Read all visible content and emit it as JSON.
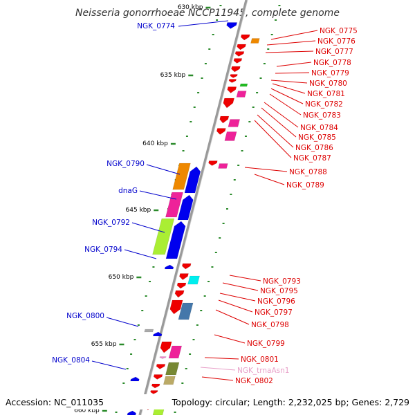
{
  "title": "Neisseria gonorrhoeae NCCP11945, complete genome",
  "footer": {
    "accession": "Accession: NC_011035",
    "summary": "Topology: circular; Length: 2,232,025 bp; Genes: 2,729"
  },
  "scale_labels": [
    "630 kbp",
    "635 kbp",
    "640 kbp",
    "645 kbp",
    "650 kbp",
    "655 kbp",
    "660 kbp"
  ],
  "colors": {
    "left_label": "#0000cc",
    "right_label": "#dd0000",
    "rna_label": "#e8a0c8",
    "backbone": "#9a9a9a",
    "tick": "#2a8a2a",
    "blue": "#0000ee",
    "red": "#ee0000",
    "orange": "#ee8800",
    "magenta": "#ee2299",
    "lime": "#aaee33",
    "cyan": "#00eeee",
    "steel": "#4477aa",
    "olive": "#778833",
    "khaki": "#bbaa66",
    "gray": "#aaaaaa",
    "green": "#22bb22",
    "pink": "#ee88cc"
  },
  "left_labels": [
    {
      "text": "NGK_0774"
    },
    {
      "text": "NGK_0790"
    },
    {
      "text": "dnaG"
    },
    {
      "text": "NGK_0792"
    },
    {
      "text": "NGK_0794"
    },
    {
      "text": "NGK_0800"
    },
    {
      "text": "NGK_0804"
    }
  ],
  "right_labels": [
    {
      "text": "NGK_0775"
    },
    {
      "text": "NGK_0776"
    },
    {
      "text": "NGK_0777"
    },
    {
      "text": "NGK_0778"
    },
    {
      "text": "NGK_0779"
    },
    {
      "text": "NGK_0780"
    },
    {
      "text": "NGK_0781"
    },
    {
      "text": "NGK_0782"
    },
    {
      "text": "NGK_0783"
    },
    {
      "text": "NGK_0784"
    },
    {
      "text": "NGK_0785"
    },
    {
      "text": "NGK_0786"
    },
    {
      "text": "NGK_0787"
    },
    {
      "text": "NGK_0788"
    },
    {
      "text": "NGK_0789"
    },
    {
      "text": "NGK_0793"
    },
    {
      "text": "NGK_0795"
    },
    {
      "text": "NGK_0796"
    },
    {
      "text": "NGK_0797"
    },
    {
      "text": "NGK_0798"
    },
    {
      "text": "NGK_0799"
    },
    {
      "text": "NGK_0801"
    },
    {
      "text": "NGK_trnaAsn1"
    },
    {
      "text": "NGK_0802"
    }
  ]
}
